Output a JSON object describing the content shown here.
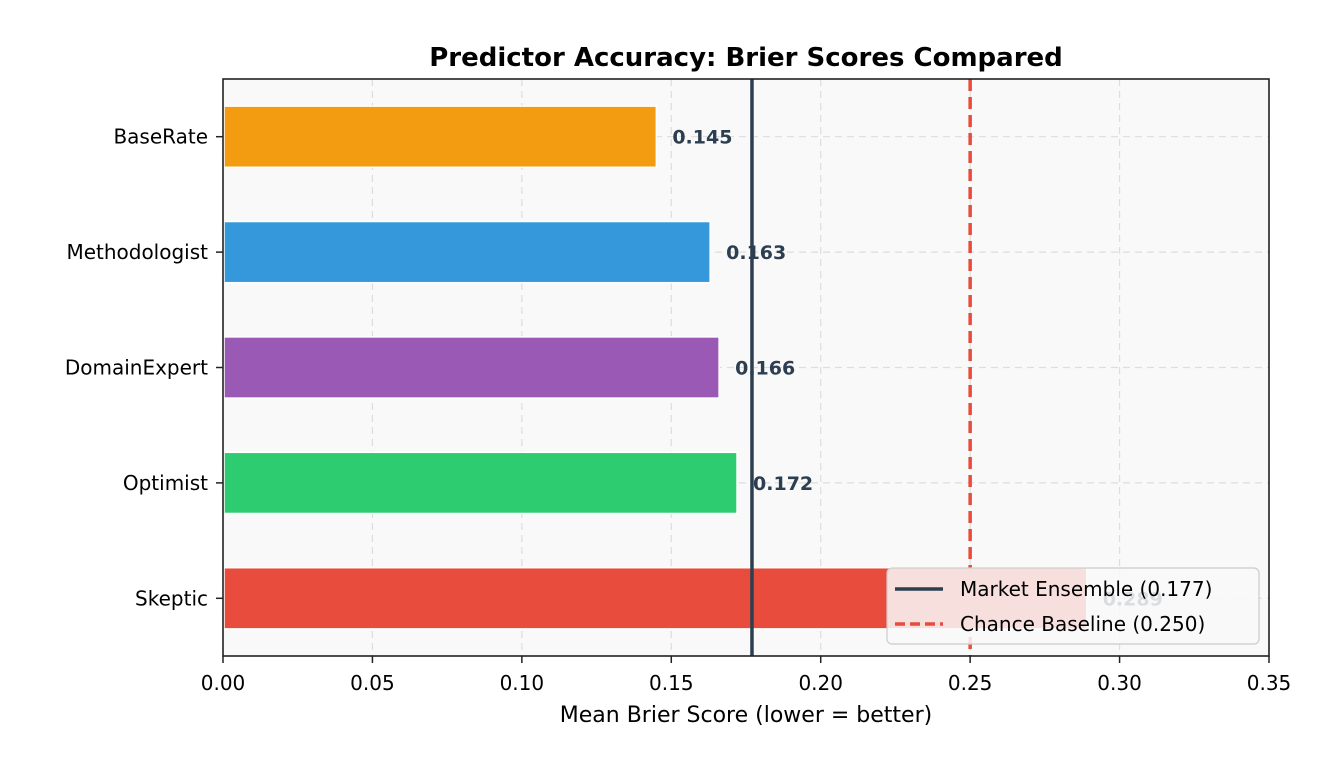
{
  "chart_data": {
    "type": "bar",
    "orientation": "horizontal",
    "title": "Predictor Accuracy: Brier Scores Compared",
    "xlabel": "Mean Brier Score (lower = better)",
    "ylabel": "",
    "xlim": [
      0.0,
      0.35
    ],
    "xticks": [
      "0.00",
      "0.05",
      "0.10",
      "0.15",
      "0.20",
      "0.25",
      "0.30",
      "0.35"
    ],
    "grid": true,
    "categories": [
      "BaseRate",
      "Methodologist",
      "DomainExpert",
      "Optimist",
      "Skeptic"
    ],
    "values": [
      0.145,
      0.163,
      0.166,
      0.172,
      0.289
    ],
    "value_labels": [
      "0.145",
      "0.163",
      "0.166",
      "0.172",
      "0.289"
    ],
    "colors": [
      "#f39c12",
      "#3498db",
      "#9b59b6",
      "#2ecc71",
      "#e74c3c"
    ],
    "reference_lines": [
      {
        "name": "Market Ensemble (0.177)",
        "value": 0.177,
        "style": "solid",
        "color": "#2c3e50"
      },
      {
        "name": "Chance Baseline (0.250)",
        "value": 0.25,
        "style": "dashed",
        "color": "#e74c3c"
      }
    ],
    "legend_position": "lower right"
  }
}
